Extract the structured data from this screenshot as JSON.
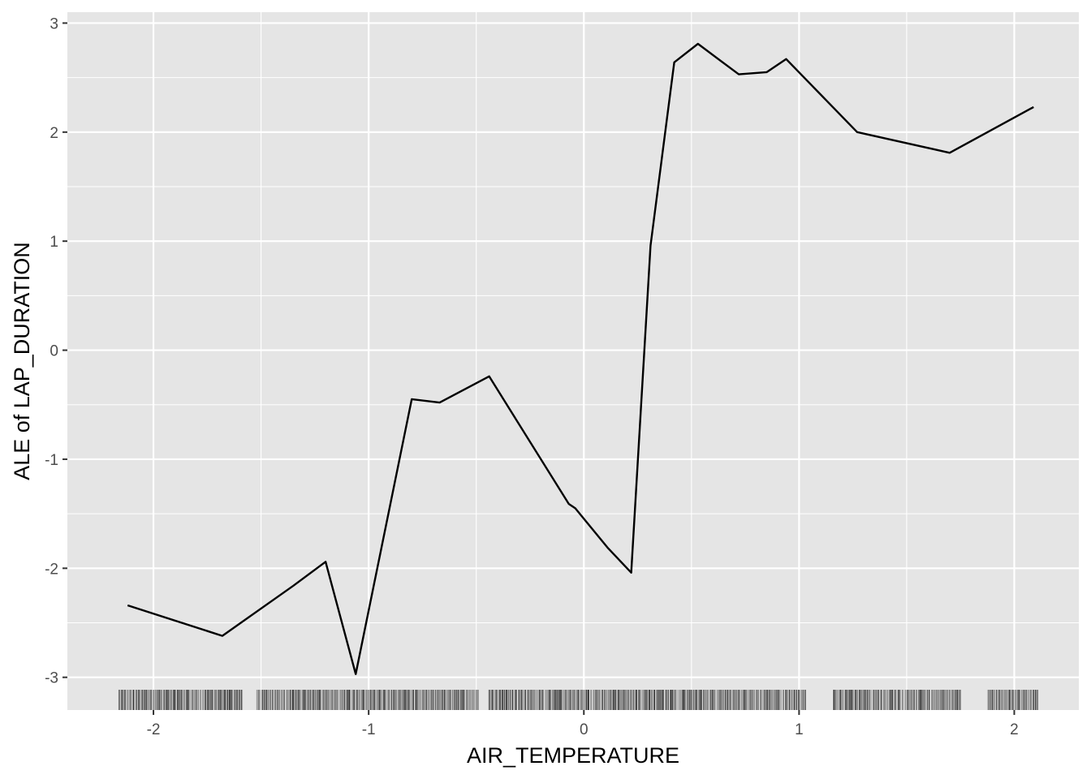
{
  "chart_data": {
    "type": "line",
    "title": "",
    "xlabel": "AIR_TEMPERATURE",
    "ylabel": "ALE of LAP_DURATION",
    "xlim": [
      -2.4,
      2.3
    ],
    "ylim": [
      -3.3,
      3.1
    ],
    "x_ticks": [
      -2,
      -1,
      0,
      1,
      2
    ],
    "x_tick_labels": [
      "-2",
      "-1",
      "0",
      "1",
      "2"
    ],
    "y_ticks": [
      -3,
      -2,
      -1,
      0,
      1,
      2,
      3
    ],
    "y_tick_labels": [
      "-3",
      "-2",
      "-1",
      "0",
      "1",
      "2",
      "3"
    ],
    "grid": true,
    "legend": "none",
    "series": [
      {
        "x": [
          -2.12,
          -1.68,
          -1.35,
          -1.2,
          -1.06,
          -0.8,
          -0.67,
          -0.44,
          -0.07,
          -0.04,
          0.11,
          0.22,
          0.31,
          0.42,
          0.53,
          0.72,
          0.85,
          0.94,
          1.27,
          1.7,
          2.09
        ],
        "values": [
          -2.34,
          -2.62,
          -2.16,
          -1.94,
          -2.97,
          -0.45,
          -0.48,
          -0.24,
          -1.41,
          -1.45,
          -1.81,
          -2.04,
          0.96,
          2.64,
          2.81,
          2.53,
          2.55,
          2.67,
          2.0,
          1.81,
          2.23
        ]
      }
    ],
    "rug": {
      "clusters": [
        [
          -2.16,
          -1.59
        ],
        [
          -1.52,
          -0.49
        ],
        [
          -0.44,
          1.03
        ],
        [
          1.16,
          1.75
        ],
        [
          1.88,
          2.11
        ]
      ]
    },
    "colors": {
      "panel_background": "#e5e5e5",
      "grid_major": "#ffffff",
      "line": "#000000"
    }
  }
}
